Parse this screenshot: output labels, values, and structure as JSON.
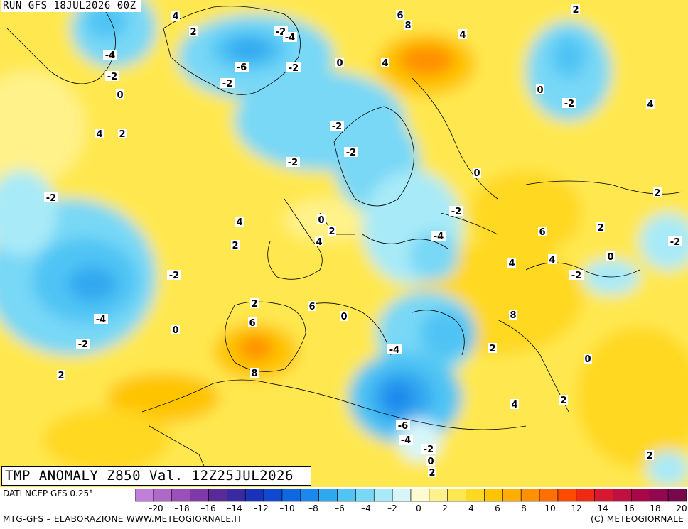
{
  "header": {
    "run_label": "RUN GFS 18JUL2026 00Z",
    "valid_label": "TMP ANOMALY Z850 Val. 12Z25JUL2026"
  },
  "footer": {
    "data_source": "DATI NCEP GFS 0.25°",
    "credit_left": "MTG-GFS – ELABORAZIONE WWW.METEOGIORNALE.IT",
    "credit_right": "(C) METEOGIORNALE"
  },
  "legend": {
    "tick_labels": [
      "-20",
      "-18",
      "-16",
      "-14",
      "-12",
      "-10",
      "-8",
      "-6",
      "-4",
      "-2",
      "0",
      "2",
      "4",
      "6",
      "8",
      "10",
      "12",
      "14",
      "16",
      "18",
      "20"
    ],
    "colors": [
      "#c080d8",
      "#b068c8",
      "#9a50b8",
      "#7d3aa8",
      "#5a2a98",
      "#3a2aa0",
      "#1a32b8",
      "#1048d0",
      "#1068e0",
      "#1a88ec",
      "#30a8f0",
      "#50c4f4",
      "#78d8f6",
      "#a8eaf8",
      "#d8f6fa",
      "#fffbd0",
      "#fff28a",
      "#ffe850",
      "#ffd820",
      "#ffc400",
      "#ffae00",
      "#ff9000",
      "#ff7000",
      "#ff4a00",
      "#f02a10",
      "#d81830",
      "#c01040",
      "#a80848",
      "#900850",
      "#78084c"
    ]
  },
  "isotherm_labels": [
    {
      "text": "4"
    },
    {
      "text": "2"
    },
    {
      "text": "-4"
    },
    {
      "text": "-2"
    },
    {
      "text": "0"
    },
    {
      "text": "-2"
    },
    {
      "text": "-4"
    },
    {
      "text": "-6"
    },
    {
      "text": "-2"
    },
    {
      "text": "0"
    },
    {
      "text": "-2"
    },
    {
      "text": "6"
    },
    {
      "text": "8"
    },
    {
      "text": "4"
    },
    {
      "text": "4"
    },
    {
      "text": "2"
    },
    {
      "text": "0"
    },
    {
      "text": "-2"
    },
    {
      "text": "4"
    },
    {
      "text": "2"
    },
    {
      "text": "-2"
    },
    {
      "text": "-2"
    },
    {
      "text": "-2"
    },
    {
      "text": "0"
    },
    {
      "text": "2"
    },
    {
      "text": "-2"
    },
    {
      "text": "-2"
    },
    {
      "text": "4"
    },
    {
      "text": "0"
    },
    {
      "text": "2"
    },
    {
      "text": "6"
    },
    {
      "text": "-4"
    },
    {
      "text": "2"
    },
    {
      "text": "4"
    },
    {
      "text": "4"
    },
    {
      "text": "-2"
    },
    {
      "text": "-2"
    },
    {
      "text": "2"
    },
    {
      "text": "4"
    },
    {
      "text": "6"
    },
    {
      "text": "0"
    },
    {
      "text": "-2"
    },
    {
      "text": "-4"
    },
    {
      "text": "-2"
    },
    {
      "text": "0"
    },
    {
      "text": "2"
    },
    {
      "text": "6"
    },
    {
      "text": "8"
    },
    {
      "text": "-4"
    },
    {
      "text": "0"
    },
    {
      "text": "2"
    },
    {
      "text": "8"
    },
    {
      "text": "-6"
    },
    {
      "text": "-4"
    },
    {
      "text": "-2"
    },
    {
      "text": "0"
    },
    {
      "text": "2"
    },
    {
      "text": "4"
    },
    {
      "text": "2"
    },
    {
      "text": "0"
    },
    {
      "text": "2"
    },
    {
      "text": "4"
    },
    {
      "text": "2"
    }
  ]
}
